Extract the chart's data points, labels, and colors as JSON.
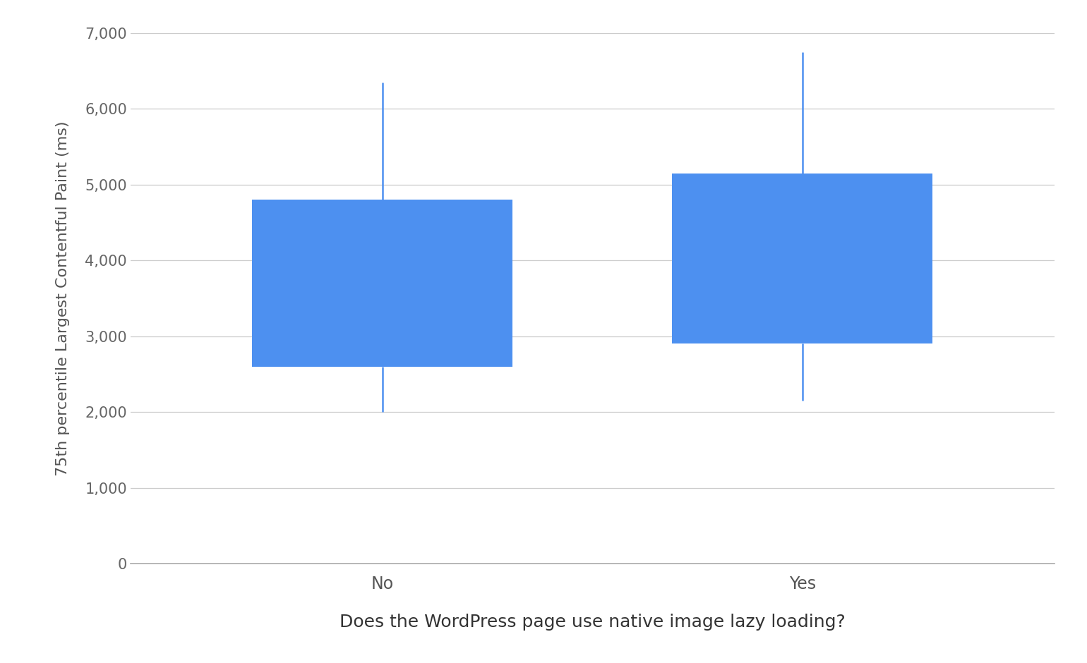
{
  "categories": [
    "No",
    "Yes"
  ],
  "p10": [
    2000,
    2150
  ],
  "p25": [
    2600,
    2900
  ],
  "p75": [
    4800,
    5150
  ],
  "p90": [
    6350,
    6750
  ],
  "box_color": "#4d90f0",
  "whisker_color": "#4d90f0",
  "ylabel": "75th percentile Largest Contentful Paint (ms)",
  "xlabel": "Does the WordPress page use native image lazy loading?",
  "ylim": [
    0,
    7000
  ],
  "yticks": [
    0,
    1000,
    2000,
    3000,
    4000,
    5000,
    6000,
    7000
  ],
  "ytick_labels": [
    "0",
    "1,000",
    "2,000",
    "3,000",
    "4,000",
    "5,000",
    "6,000",
    "7,000"
  ],
  "background_color": "#ffffff",
  "grid_color": "#cccccc",
  "box_width": 0.62,
  "whisker_linewidth": 1.8,
  "x_positions": [
    1,
    2
  ],
  "xlim": [
    0.4,
    2.6
  ]
}
